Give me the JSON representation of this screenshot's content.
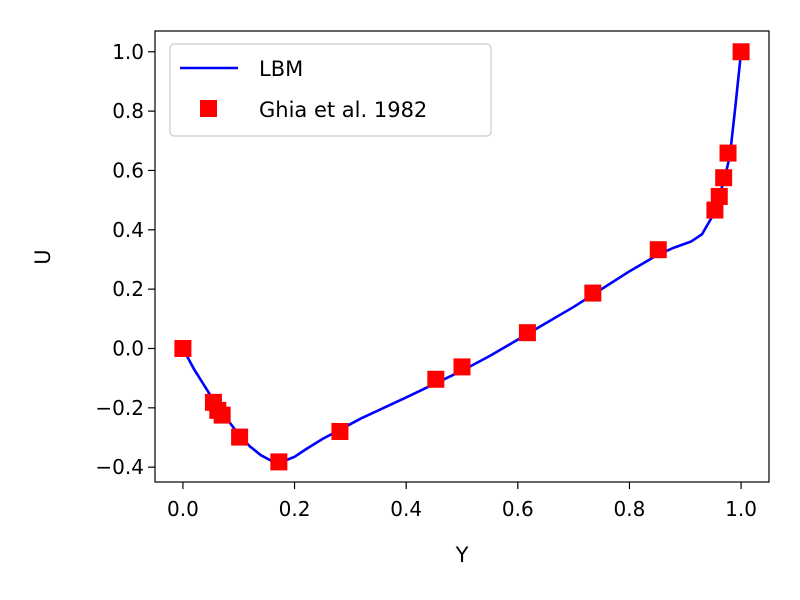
{
  "chart_data": {
    "type": "line",
    "title": "",
    "xlabel": "Y",
    "ylabel": "U",
    "xlim": [
      -0.05,
      1.05
    ],
    "ylim": [
      -0.45,
      1.07
    ],
    "xticks": [
      0.0,
      0.2,
      0.4,
      0.6,
      0.8,
      1.0
    ],
    "xtick_labels": [
      "0.0",
      "0.2",
      "0.4",
      "0.6",
      "0.8",
      "1.0"
    ],
    "yticks": [
      -0.4,
      -0.2,
      0.0,
      0.2,
      0.4,
      0.6,
      0.8,
      1.0
    ],
    "ytick_labels": [
      "−0.4",
      "−0.2",
      "0.0",
      "0.2",
      "0.4",
      "0.6",
      "0.8",
      "1.0"
    ],
    "grid": false,
    "legend_position": "top-left",
    "series": [
      {
        "name": "LBM",
        "kind": "line",
        "color": "#0000ff",
        "x": [
          0.0,
          0.02,
          0.04,
          0.06,
          0.08,
          0.1,
          0.12,
          0.14,
          0.16,
          0.18,
          0.2,
          0.22,
          0.25,
          0.28,
          0.32,
          0.36,
          0.4,
          0.45,
          0.5,
          0.55,
          0.6,
          0.65,
          0.7,
          0.75,
          0.8,
          0.85,
          0.88,
          0.91,
          0.93,
          0.95,
          0.96,
          0.97,
          0.98,
          0.99,
          1.0
        ],
        "y": [
          0.0,
          -0.07,
          -0.13,
          -0.19,
          -0.24,
          -0.29,
          -0.33,
          -0.36,
          -0.38,
          -0.38,
          -0.365,
          -0.34,
          -0.305,
          -0.275,
          -0.235,
          -0.2,
          -0.165,
          -0.12,
          -0.075,
          -0.025,
          0.03,
          0.085,
          0.14,
          0.2,
          0.26,
          0.315,
          0.34,
          0.36,
          0.385,
          0.45,
          0.51,
          0.57,
          0.65,
          0.82,
          1.0
        ]
      },
      {
        "name": "Ghia et al. 1982",
        "kind": "scatter",
        "marker": "square",
        "color": "#ff0000",
        "x": [
          0.0,
          0.0547,
          0.0625,
          0.0703,
          0.1016,
          0.1719,
          0.2813,
          0.4531,
          0.5,
          0.6172,
          0.7344,
          0.8516,
          0.9531,
          0.9609,
          0.9688,
          0.9766,
          1.0
        ],
        "y": [
          0.0,
          -0.1815,
          -0.2085,
          -0.2245,
          -0.2986,
          -0.3822,
          -0.2797,
          -0.1038,
          -0.0621,
          0.0533,
          0.1868,
          0.3329,
          0.4665,
          0.5124,
          0.5755,
          0.6586,
          1.0
        ]
      }
    ]
  }
}
